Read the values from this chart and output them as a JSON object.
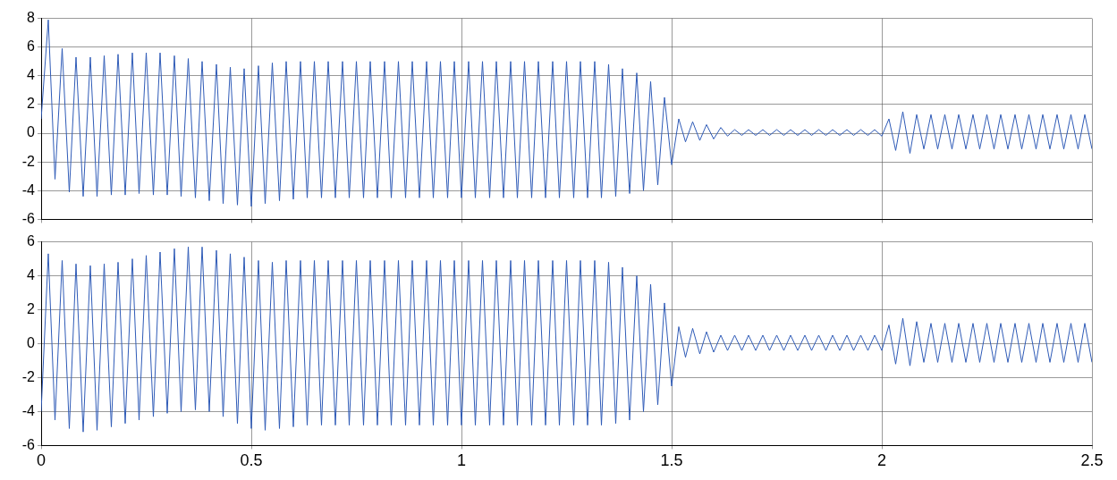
{
  "chart_data": [
    {
      "type": "line",
      "x": [
        0,
        0.017,
        0.033,
        0.05,
        0.067,
        0.083,
        0.1,
        0.117,
        0.133,
        0.15,
        0.167,
        0.183,
        0.2,
        0.217,
        0.233,
        0.25,
        0.267,
        0.283,
        0.3,
        0.317,
        0.333,
        0.35,
        0.367,
        0.383,
        0.4,
        0.417,
        0.433,
        0.45,
        0.467,
        0.483,
        0.5,
        0.517,
        0.533,
        0.55,
        0.567,
        0.583,
        0.6,
        0.617,
        0.633,
        0.65,
        0.667,
        0.683,
        0.7,
        0.717,
        0.733,
        0.75,
        0.767,
        0.783,
        0.8,
        0.817,
        0.833,
        0.85,
        0.867,
        0.883,
        0.9,
        0.917,
        0.933,
        0.95,
        0.967,
        0.983,
        1,
        1.017,
        1.033,
        1.05,
        1.067,
        1.083,
        1.1,
        1.117,
        1.133,
        1.15,
        1.167,
        1.183,
        1.2,
        1.217,
        1.233,
        1.25,
        1.267,
        1.283,
        1.3,
        1.317,
        1.333,
        1.35,
        1.367,
        1.383,
        1.4,
        1.417,
        1.433,
        1.45,
        1.467,
        1.483,
        1.5,
        1.517,
        1.533,
        1.55,
        1.567,
        1.583,
        1.6,
        1.617,
        1.633,
        1.65,
        1.667,
        1.683,
        1.7,
        1.717,
        1.733,
        1.75,
        1.767,
        1.783,
        1.8,
        1.817,
        1.833,
        1.85,
        1.867,
        1.883,
        1.9,
        1.917,
        1.933,
        1.95,
        1.967,
        1.983,
        2,
        2.017,
        2.033,
        2.05,
        2.067,
        2.083,
        2.1,
        2.117,
        2.133,
        2.15,
        2.167,
        2.183,
        2.2,
        2.217,
        2.233,
        2.25,
        2.267,
        2.283,
        2.3,
        2.317,
        2.333,
        2.35,
        2.367,
        2.383,
        2.4,
        2.417,
        2.433,
        2.45,
        2.467,
        2.483,
        2.5
      ],
      "series": [
        {
          "color": "#2f5bb7",
          "values": [
            1,
            7.9,
            -3.2,
            5.9,
            -4.1,
            5.3,
            -4.4,
            5.3,
            -4.4,
            5.4,
            -4.3,
            5.5,
            -4.3,
            5.6,
            -4.2,
            5.6,
            -4.3,
            5.6,
            -4.3,
            5.4,
            -4.4,
            5.2,
            -4.5,
            5.0,
            -4.7,
            4.8,
            -4.9,
            4.6,
            -5.0,
            4.5,
            -5.1,
            4.7,
            -4.9,
            4.9,
            -4.7,
            5.0,
            -4.6,
            5.0,
            -4.5,
            5.0,
            -4.5,
            5.0,
            -4.5,
            5.0,
            -4.5,
            5.0,
            -4.5,
            5.0,
            -4.5,
            5.0,
            -4.5,
            5.0,
            -4.5,
            5.0,
            -4.5,
            5.0,
            -4.5,
            5.0,
            -4.5,
            5.0,
            -4.5,
            5.0,
            -4.5,
            5.0,
            -4.5,
            5.0,
            -4.5,
            5.0,
            -4.5,
            5.0,
            -4.5,
            5.0,
            -4.5,
            5.0,
            -4.5,
            5.0,
            -4.5,
            5.0,
            -4.5,
            5.0,
            -4.5,
            4.8,
            -4.4,
            4.5,
            -4.2,
            4.2,
            -4.0,
            3.6,
            -3.6,
            2.5,
            -2.2,
            1.0,
            -0.6,
            0.8,
            -0.5,
            0.6,
            -0.4,
            0.4,
            -0.2,
            0.25,
            -0.15,
            0.25,
            -0.15,
            0.25,
            -0.15,
            0.25,
            -0.15,
            0.25,
            -0.15,
            0.25,
            -0.15,
            0.25,
            -0.15,
            0.25,
            -0.15,
            0.25,
            -0.15,
            0.25,
            -0.15,
            0.25,
            -0.2,
            1.0,
            -1.2,
            1.5,
            -1.4,
            1.3,
            -1.1,
            1.3,
            -1.1,
            1.3,
            -1.1,
            1.3,
            -1.1,
            1.3,
            -1.1,
            1.3,
            -1.1,
            1.3,
            -1.1,
            1.3,
            -1.1,
            1.3,
            -1.1,
            1.3,
            -1.1,
            1.3,
            -1.1,
            1.3,
            -1.1,
            1.3,
            -1.1
          ]
        }
      ],
      "xlim": [
        0,
        2.5
      ],
      "xticks": [
        0,
        0.5,
        1,
        1.5,
        2,
        2.5
      ],
      "ylim": [
        -6,
        8
      ],
      "yticks": [
        -6,
        -4,
        -2,
        0,
        2,
        4,
        6,
        8
      ],
      "grid": true,
      "legend": false,
      "marker": "none",
      "tick_labels": "y"
    },
    {
      "type": "line",
      "x": [
        0,
        0.017,
        0.033,
        0.05,
        0.067,
        0.083,
        0.1,
        0.117,
        0.133,
        0.15,
        0.167,
        0.183,
        0.2,
        0.217,
        0.233,
        0.25,
        0.267,
        0.283,
        0.3,
        0.317,
        0.333,
        0.35,
        0.367,
        0.383,
        0.4,
        0.417,
        0.433,
        0.45,
        0.467,
        0.483,
        0.5,
        0.517,
        0.533,
        0.55,
        0.567,
        0.583,
        0.6,
        0.617,
        0.633,
        0.65,
        0.667,
        0.683,
        0.7,
        0.717,
        0.733,
        0.75,
        0.767,
        0.783,
        0.8,
        0.817,
        0.833,
        0.85,
        0.867,
        0.883,
        0.9,
        0.917,
        0.933,
        0.95,
        0.967,
        0.983,
        1,
        1.017,
        1.033,
        1.05,
        1.067,
        1.083,
        1.1,
        1.117,
        1.133,
        1.15,
        1.167,
        1.183,
        1.2,
        1.217,
        1.233,
        1.25,
        1.267,
        1.283,
        1.3,
        1.317,
        1.333,
        1.35,
        1.367,
        1.383,
        1.4,
        1.417,
        1.433,
        1.45,
        1.467,
        1.483,
        1.5,
        1.517,
        1.533,
        1.55,
        1.567,
        1.583,
        1.6,
        1.617,
        1.633,
        1.65,
        1.667,
        1.683,
        1.7,
        1.717,
        1.733,
        1.75,
        1.767,
        1.783,
        1.8,
        1.817,
        1.833,
        1.85,
        1.867,
        1.883,
        1.9,
        1.917,
        1.933,
        1.95,
        1.967,
        1.983,
        2,
        2.017,
        2.033,
        2.05,
        2.067,
        2.083,
        2.1,
        2.117,
        2.133,
        2.15,
        2.167,
        2.183,
        2.2,
        2.217,
        2.233,
        2.25,
        2.267,
        2.283,
        2.3,
        2.317,
        2.333,
        2.35,
        2.367,
        2.383,
        2.4,
        2.417,
        2.433,
        2.45,
        2.467,
        2.483,
        2.5
      ],
      "series": [
        {
          "color": "#2f5bb7",
          "values": [
            -4,
            5.3,
            -4.5,
            4.9,
            -5.0,
            4.7,
            -5.2,
            4.6,
            -5.1,
            4.7,
            -4.9,
            4.8,
            -4.7,
            5.0,
            -4.5,
            5.2,
            -4.3,
            5.4,
            -4.1,
            5.6,
            -4.0,
            5.7,
            -3.9,
            5.7,
            -4.0,
            5.5,
            -4.3,
            5.3,
            -4.7,
            5.1,
            -5.0,
            4.9,
            -5.1,
            4.8,
            -5.0,
            4.9,
            -4.9,
            4.9,
            -4.8,
            4.9,
            -4.8,
            4.9,
            -4.8,
            4.9,
            -4.8,
            4.9,
            -4.8,
            4.9,
            -4.8,
            4.9,
            -4.8,
            4.9,
            -4.8,
            4.9,
            -4.8,
            4.9,
            -4.8,
            4.9,
            -4.8,
            4.9,
            -4.8,
            4.9,
            -4.8,
            4.9,
            -4.8,
            4.9,
            -4.8,
            4.9,
            -4.8,
            4.9,
            -4.8,
            4.9,
            -4.8,
            4.9,
            -4.8,
            4.9,
            -4.8,
            4.9,
            -4.8,
            4.9,
            -4.8,
            4.8,
            -4.7,
            4.5,
            -4.5,
            4.0,
            -4.0,
            3.5,
            -3.6,
            2.4,
            -2.5,
            1.0,
            -0.8,
            0.9,
            -0.6,
            0.7,
            -0.5,
            0.5,
            -0.4,
            0.5,
            -0.4,
            0.5,
            -0.4,
            0.5,
            -0.4,
            0.5,
            -0.4,
            0.5,
            -0.4,
            0.5,
            -0.4,
            0.5,
            -0.4,
            0.5,
            -0.4,
            0.5,
            -0.4,
            0.5,
            -0.4,
            0.5,
            -0.4,
            1.1,
            -1.2,
            1.5,
            -1.3,
            1.3,
            -1.1,
            1.2,
            -1.1,
            1.2,
            -1.1,
            1.2,
            -1.1,
            1.2,
            -1.1,
            1.2,
            -1.1,
            1.2,
            -1.1,
            1.2,
            -1.1,
            1.2,
            -1.1,
            1.2,
            -1.1,
            1.2,
            -1.1,
            1.2,
            -1.1,
            1.2,
            -1.1
          ]
        }
      ],
      "xlim": [
        0,
        2.5
      ],
      "xticks": [
        0,
        0.5,
        1,
        1.5,
        2,
        2.5
      ],
      "ylim": [
        -6,
        6
      ],
      "yticks": [
        -6,
        -4,
        -2,
        0,
        2,
        4,
        6
      ],
      "grid": true,
      "legend": false,
      "marker": "none"
    }
  ]
}
